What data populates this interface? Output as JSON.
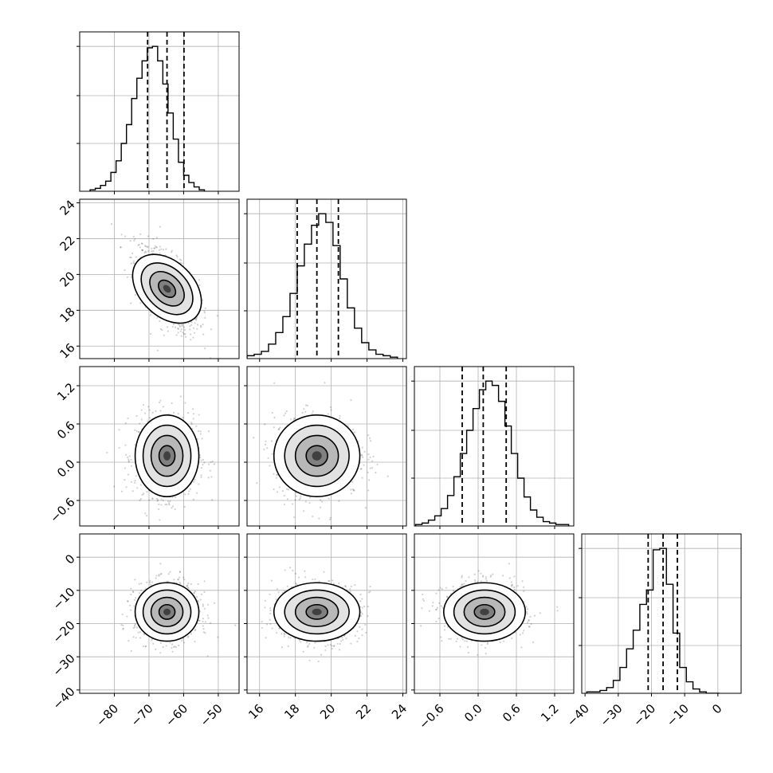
{
  "chart_data": {
    "type": "corner",
    "title": "",
    "params": [
      {
        "range": [
          -90,
          -44
        ],
        "ticks": [
          -80,
          -70,
          -60,
          -50
        ],
        "tick_labels": [
          "−80",
          "−70",
          "−60",
          "−50"
        ],
        "mean": -64.8,
        "sd": 4.6,
        "quantiles": [
          -70.4,
          -64.8,
          -59.9
        ],
        "hist_x_start": -87,
        "hist_bin_width": 1.5,
        "hist_counts": [
          1,
          2,
          4,
          7,
          13,
          21,
          33,
          46,
          64,
          78,
          90,
          99,
          100,
          90,
          74,
          54,
          36,
          20,
          11,
          6,
          3,
          1
        ]
      },
      {
        "range": [
          15.3,
          24.2
        ],
        "ticks": [
          16,
          18,
          20,
          22,
          24
        ],
        "tick_labels": [
          "16",
          "18",
          "20",
          "22",
          "24"
        ],
        "mean": 19.2,
        "sd": 1.2,
        "quantiles": [
          18.1,
          19.2,
          20.4
        ],
        "hist_x_start": 15.3,
        "hist_bin_width": 0.4,
        "hist_counts": [
          2,
          3,
          5,
          10,
          18,
          29,
          45,
          64,
          79,
          92,
          100,
          94,
          78,
          55,
          35,
          21,
          11,
          6,
          3,
          2,
          1
        ]
      },
      {
        "range": [
          -1.0,
          1.5
        ],
        "ticks": [
          -0.6,
          0.0,
          0.6,
          1.2
        ],
        "tick_labels": [
          "−0.6",
          "0.0",
          "0.6",
          "1.2"
        ],
        "mean": 0.1,
        "sd": 0.32,
        "quantiles": [
          -0.25,
          0.08,
          0.44
        ],
        "hist_x_start": -0.98,
        "hist_bin_width": 0.1,
        "hist_counts": [
          1,
          2,
          4,
          7,
          12,
          21,
          34,
          50,
          66,
          81,
          94,
          100,
          97,
          86,
          69,
          50,
          33,
          20,
          11,
          6,
          3,
          2,
          1,
          1
        ]
      },
      {
        "range": [
          -41,
          7
        ],
        "ticks": [
          -40,
          -30,
          -20,
          -10,
          0
        ],
        "tick_labels": [
          "−40",
          "−30",
          "−20",
          "−10",
          "0"
        ],
        "mean": -16.5,
        "sd": 4.4,
        "quantiles": [
          -21.0,
          -16.5,
          -12.2
        ],
        "hist_x_start": -39.5,
        "hist_bin_width": 2.0,
        "hist_counts": [
          1,
          1,
          2,
          4,
          9,
          18,
          31,
          44,
          62,
          72,
          100,
          101,
          76,
          42,
          18,
          8,
          3,
          1,
          0,
          0
        ]
      }
    ],
    "correlations": [
      [
        1,
        -0.6,
        0,
        0
      ],
      [
        -0.6,
        1,
        0,
        0
      ],
      [
        0,
        0,
        1,
        0
      ],
      [
        0,
        0,
        0,
        1
      ]
    ],
    "contour_levels": [
      0.5,
      1.0,
      1.5,
      2.0
    ],
    "grid": true,
    "quantile_lines": "dashed",
    "scatter_color": "#000000"
  }
}
